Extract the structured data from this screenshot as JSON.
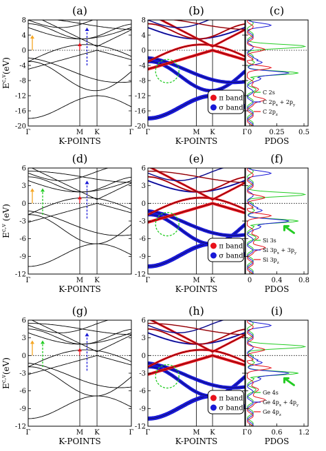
{
  "chart_data": [
    {
      "type": "line",
      "row_labels": [
        "(a)",
        "(b)",
        "(c)"
      ],
      "ylabel": "E^{c,v}(eV)",
      "xlabel": "K-POINTS",
      "ylim": [
        -20,
        8
      ],
      "yticks": [
        -20,
        -16,
        -12,
        -8,
        -4,
        0,
        4,
        8
      ],
      "path_labels": [
        "Γ",
        "M",
        "K",
        "Γ"
      ],
      "dotted_fermi_level": 0,
      "band_series_legend": [
        {
          "name": "π band",
          "color": "#e8111a"
        },
        {
          "name": "σ band",
          "color": "#1919d6"
        }
      ],
      "pdos": {
        "xlabel": "PDOS",
        "xlim": [
          0,
          0.5
        ],
        "xticks": [
          "0",
          "0.25",
          "0.5"
        ],
        "series": [
          {
            "name": "C 2s",
            "color": "#22cc22"
          },
          {
            "name": "C 2p_x + 2p_y",
            "color": "#1919d6"
          },
          {
            "name": "C 2p_z",
            "color": "#e8111a"
          }
        ]
      }
    },
    {
      "type": "line",
      "row_labels": [
        "(d)",
        "(e)",
        "(f)"
      ],
      "ylabel": "E^{c,v} (eV)",
      "xlabel": "K-POINTS",
      "ylim": [
        -12,
        6
      ],
      "yticks": [
        -12,
        -9,
        -6,
        -3,
        0,
        3,
        6
      ],
      "path_labels": [
        "Γ",
        "M",
        "K"
      ],
      "dotted_fermi_level": 0,
      "band_series_legend": [
        {
          "name": "π band",
          "color": "#e8111a"
        },
        {
          "name": "σ band",
          "color": "#1919d6"
        }
      ],
      "pdos": {
        "xlabel": "PDOS",
        "xlim": [
          0,
          0.8
        ],
        "xticks": [
          "0",
          "0.4",
          "0.8"
        ],
        "series": [
          {
            "name": "Si 3s",
            "color": "#22cc22"
          },
          {
            "name": "Si 3p_x + 3p_y",
            "color": "#1919d6"
          },
          {
            "name": "Si 3p_z",
            "color": "#e8111a"
          }
        ]
      }
    },
    {
      "type": "line",
      "row_labels": [
        "(g)",
        "(h)",
        "(i)"
      ],
      "ylabel": "E^{c,v}(eV)",
      "xlabel": "K-POINTS",
      "ylim": [
        -12,
        6
      ],
      "yticks": [
        -12,
        -9,
        -6,
        -3,
        0,
        3,
        6
      ],
      "path_labels": [
        "Γ",
        "M",
        "K",
        "Γ"
      ],
      "dotted_fermi_level": 0,
      "band_series_legend": [
        {
          "name": "π band",
          "color": "#e8111a"
        },
        {
          "name": "σ band",
          "color": "#1919d6"
        }
      ],
      "pdos": {
        "xlabel": "PDOS",
        "xlim": [
          0,
          1.2
        ],
        "xticks": [
          "0",
          "0.6",
          "1.2"
        ],
        "series": [
          {
            "name": "Ge 4s",
            "color": "#22cc22"
          },
          {
            "name": "Ge 4p_x + 4p_y",
            "color": "#1919d6"
          },
          {
            "name": "Ge 4p_z",
            "color": "#e8111a"
          }
        ]
      }
    }
  ]
}
